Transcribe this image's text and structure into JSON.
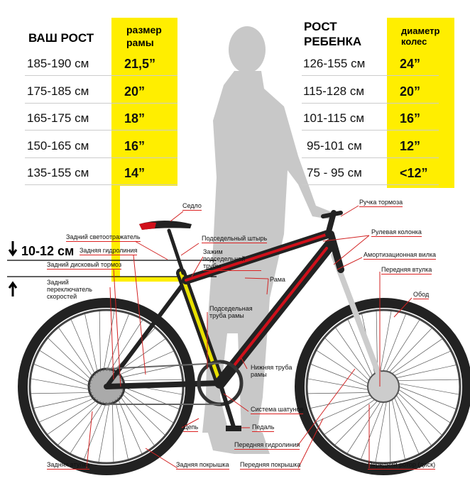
{
  "left_table": {
    "col1_header": "ВАШ РОСТ",
    "col2_header": "размер рамы",
    "rows": [
      {
        "height": "185-190 см",
        "size": "21,5”"
      },
      {
        "height": "175-185 см",
        "size": "20”"
      },
      {
        "height": "165-175 см",
        "size": "18”"
      },
      {
        "height": "150-165 см",
        "size": "16”"
      },
      {
        "height": "135-155 см",
        "size": "14”"
      }
    ]
  },
  "right_table": {
    "col1_header": "РОСТ РЕБЕНКА",
    "col2_header": "диаметр колес",
    "rows": [
      {
        "height": "126-155 см",
        "size": "24”"
      },
      {
        "height": "115-128 см",
        "size": "20”"
      },
      {
        "height": "101-115 см",
        "size": "16”"
      },
      {
        "height": "95-101 см",
        "size": "12”"
      },
      {
        "height": "75 - 95 см",
        "size": "<12”"
      }
    ]
  },
  "clearance": "10-12 см",
  "parts": {
    "saddle": "Седло",
    "rear_reflector": "Задний светоотражатель",
    "seatpost": "Подседельный штырь",
    "rear_hydro": "Задняя гидролиния",
    "seat_clamp": "Зажим подседельной трубы",
    "rear_disc_brake": "Задний дисковый тормоз",
    "rear_derailleur": "Задний переключатель скоростей",
    "frame": "Рама",
    "seat_tube": "Подседельная труба рамы",
    "brake_lever": "Ручка тормоза",
    "headset": "Рулевая колонка",
    "fork": "Амортизационная вилка",
    "front_hub": "Передняя втулка",
    "rim": "Обод",
    "down_tube": "Нижняя труба рамы",
    "crankset": "Система шатунов",
    "pedal": "Педаль",
    "chain": "Цепь",
    "front_hydro": "Передняя гидролиния",
    "rear_hub": "Задняя втулка",
    "rear_tire": "Задняя покрышка",
    "front_tire": "Передняя покрышка",
    "front_rotor": "Передний ротор (диск)"
  },
  "colors": {
    "highlight": "#ffee00",
    "frame_red": "#d0101a",
    "silhouette": "#c8c8c8",
    "leader": "#d22222"
  }
}
